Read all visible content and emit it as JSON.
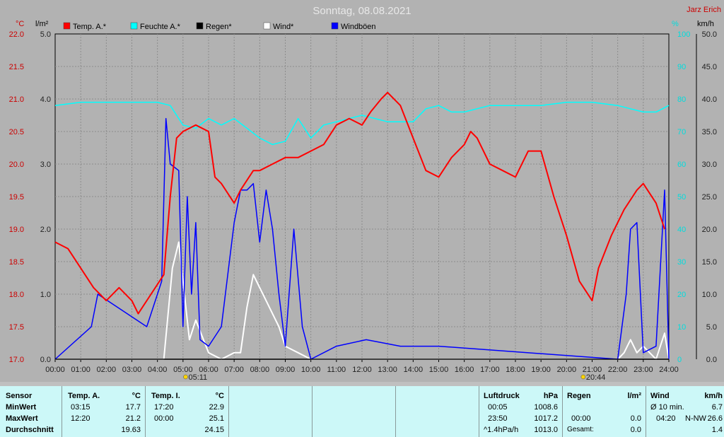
{
  "title": "Sonntag, 08.08.2021",
  "author": "Jarz Erich",
  "axes": {
    "left1_unit": "°C",
    "left2_unit": "l/m²",
    "right1_unit": "%",
    "right2_unit": "km/h",
    "temp_ticks": [
      "22.0",
      "21.5",
      "21.0",
      "20.5",
      "20.0",
      "19.5",
      "19.0",
      "18.5",
      "18.0",
      "17.5",
      "17.0"
    ],
    "rain_ticks": [
      "5.0",
      "4.0",
      "3.0",
      "2.0",
      "1.0",
      "0.0"
    ],
    "hum_ticks": [
      "100",
      "90",
      "80",
      "70",
      "60",
      "50",
      "40",
      "30",
      "20",
      "10",
      "0"
    ],
    "wind_ticks": [
      "50.0",
      "45.0",
      "40.0",
      "35.0",
      "30.0",
      "25.0",
      "20.0",
      "15.0",
      "10.0",
      "5.0",
      "0.0"
    ],
    "x_ticks": [
      "00:00",
      "01:00",
      "02:00",
      "03:00",
      "04:00",
      "05:00",
      "06:00",
      "07:00",
      "08:00",
      "09:00",
      "10:00",
      "11:00",
      "12:00",
      "13:00",
      "14:00",
      "15:00",
      "16:00",
      "17:00",
      "18:00",
      "19:00",
      "20:00",
      "21:00",
      "22:00",
      "23:00",
      "24:00"
    ],
    "sunrise": "05:11",
    "sunset": "20:44"
  },
  "legend": [
    {
      "label": "Temp. A.*",
      "color": "#ff0000"
    },
    {
      "label": "Feuchte A.*",
      "color": "#00ffff"
    },
    {
      "label": "Regen*",
      "color": "#000000"
    },
    {
      "label": "Wind*",
      "color": "#ffffff"
    },
    {
      "label": "Windböen",
      "color": "#0000ff"
    }
  ],
  "chart_data": {
    "type": "line",
    "title": "Sonntag, 08.08.2021",
    "x_range": [
      "00:00",
      "24:00"
    ],
    "grid": true,
    "legend_position": "top-left",
    "series": [
      {
        "name": "Temp. A.*",
        "unit": "°C",
        "color": "#ff0000",
        "ylim": [
          17.0,
          22.0
        ],
        "x": [
          "00:00",
          "00:30",
          "01:00",
          "01:30",
          "02:00",
          "02:30",
          "03:00",
          "03:15",
          "03:45",
          "04:15",
          "04:30",
          "04:45",
          "05:00",
          "05:30",
          "06:00",
          "06:15",
          "06:30",
          "07:00",
          "07:15",
          "07:45",
          "08:00",
          "08:30",
          "09:00",
          "09:30",
          "10:00",
          "10:30",
          "11:00",
          "11:30",
          "12:00",
          "12:20",
          "12:45",
          "13:00",
          "13:30",
          "14:00",
          "14:30",
          "15:00",
          "15:30",
          "16:00",
          "16:15",
          "16:30",
          "17:00",
          "17:30",
          "18:00",
          "18:30",
          "19:00",
          "19:30",
          "20:00",
          "20:30",
          "21:00",
          "21:15",
          "21:45",
          "22:15",
          "22:45",
          "23:00",
          "23:30",
          "23:50"
        ],
        "values": [
          18.8,
          18.7,
          18.4,
          18.1,
          17.9,
          18.1,
          17.9,
          17.7,
          18.0,
          18.3,
          19.5,
          20.4,
          20.5,
          20.6,
          20.5,
          19.8,
          19.7,
          19.4,
          19.6,
          19.9,
          19.9,
          20.0,
          20.1,
          20.1,
          20.2,
          20.3,
          20.6,
          20.7,
          20.6,
          20.8,
          21.0,
          21.1,
          20.9,
          20.4,
          19.9,
          19.8,
          20.1,
          20.3,
          20.5,
          20.4,
          20.0,
          19.9,
          19.8,
          20.2,
          20.2,
          19.5,
          18.9,
          18.2,
          17.9,
          18.4,
          18.9,
          19.3,
          19.6,
          19.7,
          19.4,
          19.0
        ]
      },
      {
        "name": "Feuchte A.*",
        "unit": "%",
        "color": "#00ffff",
        "ylim": [
          0,
          100
        ],
        "x": [
          "00:00",
          "01:00",
          "02:00",
          "03:00",
          "04:00",
          "04:30",
          "05:00",
          "05:30",
          "06:00",
          "06:30",
          "07:00",
          "07:30",
          "08:00",
          "08:30",
          "09:00",
          "09:30",
          "10:00",
          "10:30",
          "11:00",
          "12:00",
          "13:00",
          "14:00",
          "14:30",
          "15:00",
          "15:30",
          "16:00",
          "17:00",
          "18:00",
          "19:00",
          "20:00",
          "21:00",
          "22:00",
          "23:00",
          "23:30",
          "24:00"
        ],
        "values": [
          78,
          79,
          79,
          79,
          79,
          78,
          72,
          71,
          74,
          72,
          74,
          71,
          68,
          66,
          67,
          74,
          68,
          72,
          73,
          75,
          73,
          73,
          77,
          78,
          76,
          76,
          78,
          78,
          78,
          79,
          79,
          78,
          76,
          76,
          78
        ]
      },
      {
        "name": "Regen*",
        "unit": "l/m²",
        "color": "#000000",
        "ylim": [
          0,
          5
        ],
        "x": [
          "00:00",
          "24:00"
        ],
        "values": [
          0.0,
          0.0
        ]
      },
      {
        "name": "Wind*",
        "unit": "km/h",
        "color": "#ffffff",
        "ylim": [
          0,
          50
        ],
        "x": [
          "00:00",
          "04:00",
          "04:15",
          "04:35",
          "04:50",
          "05:00",
          "05:15",
          "05:30",
          "06:00",
          "06:30",
          "07:00",
          "07:15",
          "07:30",
          "07:45",
          "08:00",
          "08:15",
          "08:30",
          "08:45",
          "09:00",
          "09:30",
          "10:00",
          "11:00",
          "22:00",
          "22:15",
          "22:30",
          "22:45",
          "23:00",
          "23:30",
          "23:50",
          "24:00"
        ],
        "values": [
          0,
          0,
          0,
          14,
          18,
          12,
          3,
          6,
          1,
          0,
          1,
          1,
          8,
          13,
          11,
          9,
          7,
          5,
          2,
          1,
          0,
          0,
          0,
          1,
          3,
          1,
          2,
          0,
          4,
          0
        ]
      },
      {
        "name": "Windböen",
        "unit": "km/h",
        "color": "#0000ff",
        "ylim": [
          0,
          50
        ],
        "x": [
          "00:00",
          "01:25",
          "01:40",
          "03:35",
          "04:10",
          "04:20",
          "04:30",
          "04:50",
          "05:00",
          "05:10",
          "05:20",
          "05:30",
          "05:40",
          "06:00",
          "06:30",
          "07:00",
          "07:15",
          "07:30",
          "07:45",
          "08:00",
          "08:15",
          "08:30",
          "08:45",
          "09:00",
          "09:20",
          "09:40",
          "10:00",
          "11:00",
          "12:10",
          "13:30",
          "15:00",
          "22:00",
          "22:20",
          "22:30",
          "22:45",
          "23:00",
          "23:30",
          "23:50",
          "24:00"
        ],
        "values": [
          0,
          5,
          10,
          5,
          12,
          37,
          30,
          29,
          5,
          25,
          10,
          21,
          3,
          2,
          5,
          21,
          26,
          26,
          27,
          18,
          26,
          20,
          10,
          2,
          20,
          5,
          0,
          2,
          3,
          2,
          2,
          0,
          10,
          20,
          21,
          1,
          2,
          26,
          0
        ]
      }
    ]
  },
  "stats": {
    "sensor": {
      "header": "Sensor",
      "min": "MinWert",
      "max": "MaxWert",
      "avg": "Durchschnitt"
    },
    "temp_a": {
      "header": "Temp. A.",
      "unit": "°C",
      "min_time": "03:15",
      "min": "17.7",
      "max_time": "12:20",
      "max": "21.2",
      "avg": "19.63"
    },
    "temp_i": {
      "header": "Temp. I.",
      "unit": "°C",
      "min_time": "17:20",
      "min": "22.9",
      "max_time": "00:00",
      "max": "25.1",
      "avg": "24.15"
    },
    "pressure": {
      "header": "Luftdruck",
      "unit": "hPa",
      "min_time": "00:05",
      "min": "1008.6",
      "max_time": "23:50",
      "max": "1017.2",
      "trend": "^1.4hPa/h",
      "avg": "1013.0"
    },
    "rain": {
      "header": "Regen",
      "unit": "l/m²",
      "time": "00:00",
      "value": "0.0",
      "total_label": "Gesamt:",
      "total": "0.0"
    },
    "wind": {
      "header": "Wind",
      "unit": "km/h",
      "avg_label": "Ø 10 min.",
      "avg": "6.7",
      "max_time": "04:20",
      "max_dir": "N-NW",
      "max": "26.6",
      "value3": "1.4"
    }
  }
}
